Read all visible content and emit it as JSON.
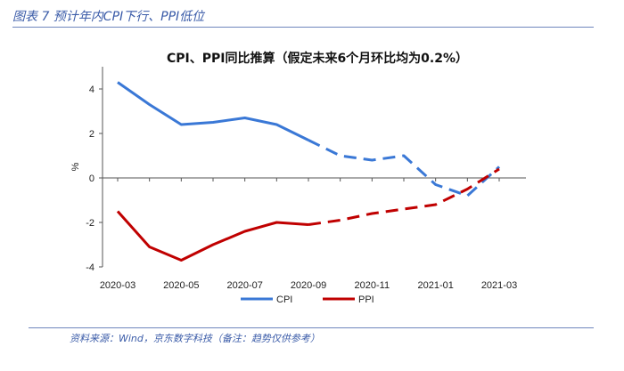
{
  "figure": {
    "title": "图表 7 预计年内CPI下行、PPI低位",
    "source": "资料来源：Wind，京东数字科技（备注：趋势仅供参考）"
  },
  "chart_data": {
    "type": "line",
    "title": "CPI、PPI同比推算（假定未来6个月环比均为0.2%）",
    "ylabel": "%",
    "xlabel": "",
    "ylim": [
      -4,
      5
    ],
    "yticks": [
      -4,
      -2,
      0,
      2,
      4
    ],
    "x": [
      "2020-03",
      "2020-04",
      "2020-05",
      "2020-06",
      "2020-07",
      "2020-08",
      "2020-09",
      "2020-10",
      "2020-11",
      "2020-12",
      "2021-01",
      "2021-02",
      "2021-03"
    ],
    "xtick_labels": [
      "2020-03",
      "2020-05",
      "2020-07",
      "2020-09",
      "2020-11",
      "2021-01",
      "2021-03"
    ],
    "actual_through": "2020-09",
    "series": [
      {
        "name": "CPI",
        "color": "#3a78d6",
        "values": [
          4.3,
          3.3,
          2.4,
          2.5,
          2.7,
          2.4,
          1.7,
          1.0,
          0.8,
          1.0,
          -0.3,
          -0.8,
          0.5
        ]
      },
      {
        "name": "PPI",
        "color": "#c00000",
        "values": [
          -1.5,
          -3.1,
          -3.7,
          -3.0,
          -2.4,
          -2.0,
          -2.1,
          -1.9,
          -1.6,
          -1.4,
          -1.2,
          -0.5,
          0.4
        ]
      }
    ],
    "legend": "bottom-center",
    "grid": false
  }
}
